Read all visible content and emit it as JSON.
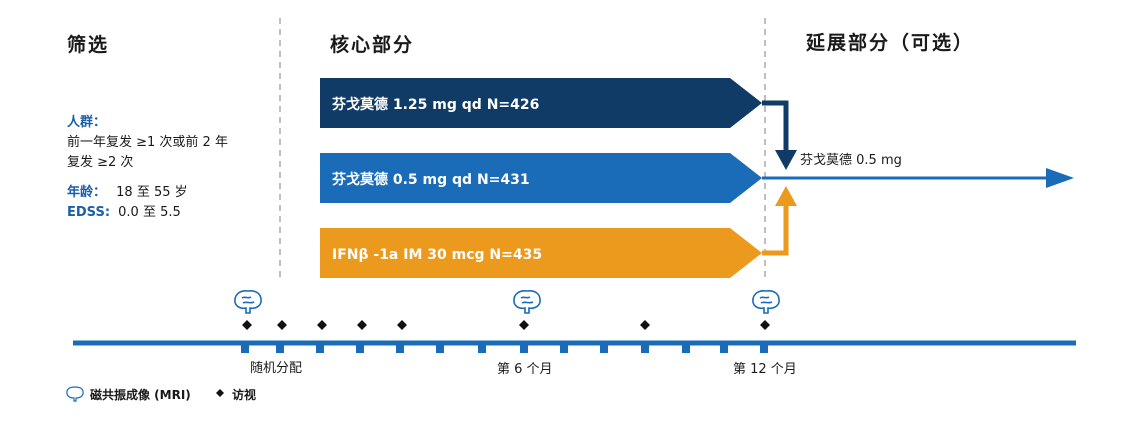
{
  "headers": {
    "screening": "筛选",
    "core": "核心部分",
    "extension": "延展部分（可选）"
  },
  "population": {
    "label": "人群：",
    "line1": "前一年复发 ≥1 次或前 2 年",
    "line2": "复发 ≥2 次"
  },
  "age": {
    "label": "年龄：",
    "value": "18 至 55 岁"
  },
  "edss": {
    "label": "EDSS:",
    "value": "0.0 至 5.5"
  },
  "arms": [
    {
      "label": "芬戈莫德 1.25 mg qd N=426",
      "color": "#0f3b66"
    },
    {
      "label": "芬戈莫德 0.5 mg qd N=431",
      "color": "#1a6bb8"
    },
    {
      "label": "IFNβ -1a IM 30 mcg N=435",
      "color": "#ec9a1e"
    }
  ],
  "extension_label": "芬戈莫德 0.5 mg",
  "timeline": {
    "randomization": "随机分配",
    "month6": "第 6 个月",
    "month12": "第 12 个月"
  },
  "legend": {
    "mri": "磁共振成像 (MRI)",
    "visit": "访视"
  },
  "icons": {
    "mri": "brain-icon",
    "visit": "diamond-icon"
  },
  "colors": {
    "timeline": "#1a6bb8",
    "dark": "#0f3b66",
    "orange": "#ec9a1e"
  }
}
